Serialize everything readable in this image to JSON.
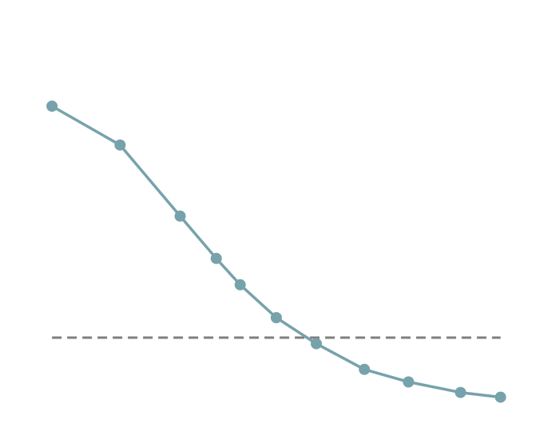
{
  "chart_data": {
    "type": "line",
    "x": [
      1,
      2.7,
      4.2,
      5.1,
      5.7,
      6.6,
      7.6,
      8.8,
      9.9,
      11.2,
      12.2
    ],
    "series": [
      {
        "values": [
          0.76,
          0.645,
          0.435,
          0.31,
          0.232,
          0.135,
          0.058,
          -0.018,
          -0.055,
          -0.086,
          -0.1
        ]
      }
    ],
    "reference_line": {
      "y": 0.076,
      "style": "dashed"
    },
    "title": "",
    "xlabel": "",
    "ylabel": "",
    "xlim": [
      0,
      13.5
    ],
    "ylim": [
      -0.2,
      1.05
    ],
    "grid": false,
    "legend": "none",
    "colors": {
      "series": "#76a2ab",
      "reference": "#7f7f7f"
    }
  }
}
